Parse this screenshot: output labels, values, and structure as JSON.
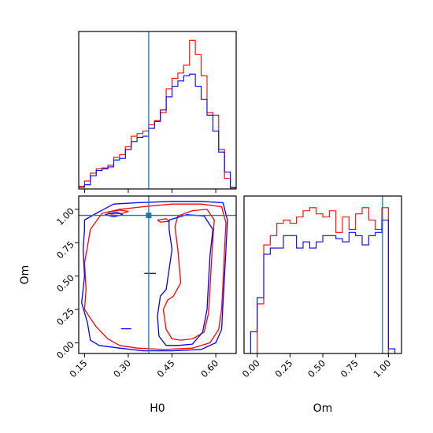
{
  "chart_data": [
    {
      "type": "histogram",
      "panel": "H0 marginal",
      "xlim": [
        0.13,
        0.67
      ],
      "truth": 0.37,
      "truth_color": "#1f77b4",
      "series": [
        {
          "color": "#ff0000",
          "bin_edges": [
            0.13,
            0.15,
            0.17,
            0.19,
            0.21,
            0.23,
            0.25,
            0.27,
            0.29,
            0.31,
            0.33,
            0.35,
            0.37,
            0.39,
            0.41,
            0.43,
            0.45,
            0.47,
            0.49,
            0.51,
            0.53,
            0.55,
            0.57,
            0.59,
            0.61,
            0.63,
            0.65,
            0.67
          ],
          "counts": [
            0.5,
            1.5,
            3,
            3.8,
            4,
            4.5,
            6,
            6.5,
            8,
            10,
            10.5,
            11,
            12.2,
            13,
            14.5,
            19,
            21,
            22,
            23.5,
            28.2,
            25.5,
            21.5,
            14.5,
            14,
            7.5,
            2,
            0.2
          ]
        },
        {
          "color": "#0000ff",
          "bin_edges": [
            0.13,
            0.15,
            0.17,
            0.19,
            0.21,
            0.23,
            0.25,
            0.27,
            0.29,
            0.31,
            0.33,
            0.35,
            0.37,
            0.39,
            0.41,
            0.43,
            0.45,
            0.47,
            0.49,
            0.51,
            0.53,
            0.55,
            0.57,
            0.59,
            0.61,
            0.63,
            0.65,
            0.67
          ],
          "counts": [
            0.3,
            0.8,
            2.5,
            3.5,
            3.8,
            4.2,
            5.5,
            5.8,
            7.5,
            9,
            9.8,
            10,
            11.5,
            12.8,
            15,
            17.5,
            19.5,
            20.5,
            21.5,
            21.8,
            19.5,
            17,
            14,
            11,
            7,
            3.2,
            0.3
          ]
        }
      ]
    },
    {
      "type": "contour",
      "panel": "H0 vs Om 2D",
      "xlabel": "H0",
      "ylabel": "Om",
      "xlim": [
        0.13,
        0.67
      ],
      "ylim": [
        -0.08,
        1.1
      ],
      "xticks": [
        "0.15",
        "0.30",
        "0.45",
        "0.60"
      ],
      "xtick_values": [
        0.15,
        0.3,
        0.45,
        0.6
      ],
      "yticks": [
        "0.00",
        "0.25",
        "0.50",
        "0.75",
        "1.00"
      ],
      "ytick_values": [
        0.0,
        0.25,
        0.5,
        0.75,
        1.0
      ],
      "truth": {
        "x": 0.37,
        "y": 0.955
      },
      "red_contours": [
        [
          [
            0.17,
            0.85
          ],
          [
            0.21,
            0.97
          ],
          [
            0.27,
            1.0
          ],
          [
            0.35,
            1.02
          ],
          [
            0.45,
            1.04
          ],
          [
            0.55,
            1.04
          ],
          [
            0.62,
            1.02
          ],
          [
            0.635,
            0.9
          ],
          [
            0.63,
            0.7
          ],
          [
            0.625,
            0.45
          ],
          [
            0.62,
            0.25
          ],
          [
            0.61,
            0.1
          ],
          [
            0.58,
            0.0
          ],
          [
            0.52,
            -0.04
          ],
          [
            0.42,
            -0.05
          ],
          [
            0.33,
            -0.04
          ],
          [
            0.27,
            -0.02
          ],
          [
            0.23,
            0.03
          ],
          [
            0.19,
            0.12
          ],
          [
            0.15,
            0.25
          ],
          [
            0.155,
            0.4
          ],
          [
            0.15,
            0.6
          ],
          [
            0.16,
            0.72
          ],
          [
            0.17,
            0.85
          ]
        ],
        [
          [
            0.47,
            0.95
          ],
          [
            0.52,
            0.99
          ],
          [
            0.57,
            1.0
          ],
          [
            0.595,
            0.92
          ],
          [
            0.59,
            0.78
          ],
          [
            0.585,
            0.6
          ],
          [
            0.58,
            0.4
          ],
          [
            0.575,
            0.22
          ],
          [
            0.56,
            0.08
          ],
          [
            0.52,
            0.03
          ],
          [
            0.48,
            0.02
          ],
          [
            0.45,
            0.03
          ],
          [
            0.43,
            0.1
          ],
          [
            0.42,
            0.25
          ],
          [
            0.435,
            0.32
          ],
          [
            0.455,
            0.35
          ],
          [
            0.48,
            0.45
          ],
          [
            0.47,
            0.7
          ],
          [
            0.46,
            0.87
          ],
          [
            0.47,
            0.95
          ]
        ],
        [
          [
            0.23,
            0.98
          ],
          [
            0.27,
            0.995
          ],
          [
            0.3,
            0.985
          ],
          [
            0.28,
            0.97
          ],
          [
            0.24,
            0.965
          ],
          [
            0.23,
            0.98
          ]
        ],
        [
          [
            0.4,
            0.92
          ],
          [
            0.43,
            0.93
          ],
          [
            0.44,
            0.91
          ],
          [
            0.41,
            0.905
          ],
          [
            0.4,
            0.92
          ]
        ]
      ],
      "blue_contours": [
        [
          [
            0.15,
            0.92
          ],
          [
            0.19,
            0.97
          ],
          [
            0.25,
            1.04
          ],
          [
            0.33,
            1.05
          ],
          [
            0.45,
            1.06
          ],
          [
            0.55,
            1.06
          ],
          [
            0.625,
            1.05
          ],
          [
            0.64,
            0.92
          ],
          [
            0.635,
            0.7
          ],
          [
            0.63,
            0.5
          ],
          [
            0.625,
            0.3
          ],
          [
            0.62,
            0.1
          ],
          [
            0.6,
            0.0
          ],
          [
            0.55,
            -0.05
          ],
          [
            0.45,
            -0.06
          ],
          [
            0.35,
            -0.06
          ],
          [
            0.27,
            -0.04
          ],
          [
            0.2,
            -0.02
          ],
          [
            0.17,
            0.02
          ],
          [
            0.16,
            0.15
          ],
          [
            0.14,
            0.3
          ],
          [
            0.15,
            0.5
          ],
          [
            0.145,
            0.7
          ],
          [
            0.15,
            0.85
          ],
          [
            0.15,
            0.92
          ]
        ],
        [
          [
            0.44,
            0.92
          ],
          [
            0.5,
            0.96
          ],
          [
            0.56,
            0.95
          ],
          [
            0.59,
            0.85
          ],
          [
            0.58,
            0.65
          ],
          [
            0.575,
            0.45
          ],
          [
            0.57,
            0.25
          ],
          [
            0.555,
            0.08
          ],
          [
            0.52,
            -0.01
          ],
          [
            0.47,
            -0.02
          ],
          [
            0.43,
            -0.02
          ],
          [
            0.405,
            0.05
          ],
          [
            0.4,
            0.2
          ],
          [
            0.41,
            0.35
          ],
          [
            0.43,
            0.4
          ],
          [
            0.44,
            0.55
          ],
          [
            0.45,
            0.7
          ],
          [
            0.44,
            0.85
          ],
          [
            0.44,
            0.92
          ]
        ],
        [
          [
            0.22,
            0.96
          ],
          [
            0.26,
            0.98
          ],
          [
            0.28,
            0.96
          ],
          [
            0.25,
            0.945
          ],
          [
            0.22,
            0.96
          ]
        ],
        [
          [
            0.355,
            0.52
          ],
          [
            0.395,
            0.52
          ]
        ],
        [
          [
            0.275,
            0.105
          ],
          [
            0.31,
            0.105
          ]
        ]
      ],
      "colors": {
        "red": "#ff0000",
        "blue": "#0000ff",
        "truth": "#1f77b4"
      }
    },
    {
      "type": "histogram",
      "panel": "Om marginal",
      "xlabel": "Om",
      "xlim": [
        -0.1,
        1.1
      ],
      "xticks": [
        "0.00",
        "0.25",
        "0.50",
        "0.75",
        "1.00"
      ],
      "xtick_values": [
        0.0,
        0.25,
        0.5,
        0.75,
        1.0
      ],
      "truth": 0.955,
      "truth_color": "#1f77b4",
      "series": [
        {
          "color": "#ff0000",
          "bin_edges": [
            0.0,
            0.05,
            0.1,
            0.15,
            0.2,
            0.25,
            0.3,
            0.35,
            0.4,
            0.45,
            0.5,
            0.55,
            0.6,
            0.65,
            0.7,
            0.75,
            0.8,
            0.85,
            0.9,
            0.95,
            1.0
          ],
          "counts": [
            16,
            35,
            38,
            42,
            43,
            42,
            44,
            46,
            47,
            45,
            44,
            46,
            39,
            44,
            40,
            45,
            47,
            43,
            40,
            47
          ]
        },
        {
          "color": "#0000ff",
          "bin_edges": [
            -0.05,
            0.0,
            0.05,
            0.1,
            0.15,
            0.2,
            0.25,
            0.3,
            0.35,
            0.4,
            0.45,
            0.5,
            0.55,
            0.6,
            0.65,
            0.7,
            0.75,
            0.8,
            0.85,
            0.9,
            0.95,
            1.0,
            1.05
          ],
          "counts": [
            7,
            18,
            32,
            34,
            34,
            38,
            38,
            34,
            36,
            34,
            36,
            38,
            38,
            37,
            36,
            39,
            38,
            35,
            38,
            39,
            43,
            1.5
          ]
        }
      ]
    }
  ]
}
